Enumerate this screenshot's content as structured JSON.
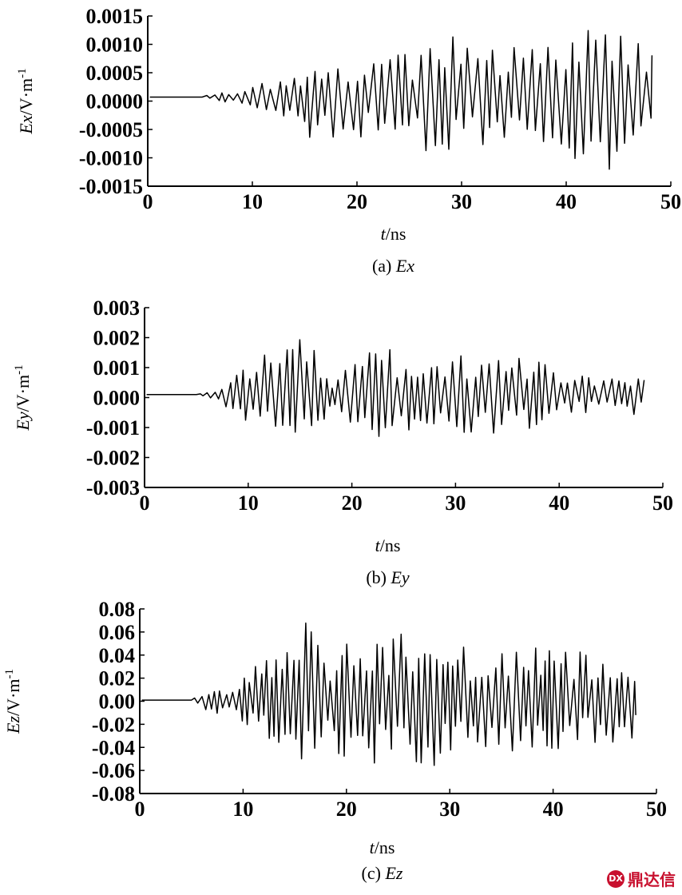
{
  "chart_data": [
    {
      "type": "line",
      "caption_prefix": "(a) ",
      "caption_var": "Ex",
      "ylabel_var": "Ex",
      "ylabel_unit": "/V·m",
      "ylabel_sup": "-1",
      "xlabel_var": "t",
      "xlabel_unit": "/ns",
      "xlim": [
        0,
        50
      ],
      "ylim": [
        -0.0015,
        0.0015
      ],
      "xticks": [
        "0",
        "10",
        "20",
        "30",
        "40",
        "50"
      ],
      "yticks": [
        "0.0015",
        "0.0010",
        "0.0005",
        "0.0000",
        "-0.0005",
        "-0.0010",
        "-0.0015"
      ],
      "y_offset": 7e-05,
      "signal_start": 5.2,
      "signal_end": 48.2,
      "envelope": [
        [
          5.2,
          3e-05
        ],
        [
          8,
          0.0001
        ],
        [
          12,
          0.0003
        ],
        [
          14.8,
          0.0004
        ],
        [
          15.2,
          0.0008
        ],
        [
          20,
          0.0007
        ],
        [
          25,
          0.0008
        ],
        [
          28,
          0.0012
        ],
        [
          30,
          0.001
        ],
        [
          35,
          0.0009
        ],
        [
          40,
          0.0011
        ],
        [
          44.5,
          0.0013
        ],
        [
          48,
          0.0009
        ]
      ],
      "period": 0.75
    },
    {
      "type": "line",
      "caption_prefix": "(b) ",
      "caption_var": "Ey",
      "ylabel_var": "Ey",
      "ylabel_unit": "/V·m",
      "ylabel_sup": "-1",
      "xlabel_var": "t",
      "xlabel_unit": "/ns",
      "xlim": [
        0,
        50
      ],
      "ylim": [
        -0.003,
        0.003
      ],
      "xticks": [
        "0",
        "10",
        "20",
        "30",
        "40",
        "50"
      ],
      "yticks": [
        "0.003",
        "0.002",
        "0.001",
        "0.000",
        "-0.001",
        "-0.002",
        "-0.003"
      ],
      "y_offset": 0.0001,
      "signal_start": 5.0,
      "signal_end": 48.2,
      "envelope": [
        [
          5,
          2e-05
        ],
        [
          7,
          0.0002
        ],
        [
          9,
          0.0008
        ],
        [
          12,
          0.0015
        ],
        [
          14.8,
          0.0026
        ],
        [
          16.5,
          0.0015
        ],
        [
          18,
          0.0003
        ],
        [
          20,
          0.0012
        ],
        [
          23,
          0.0016
        ],
        [
          26,
          0.0013
        ],
        [
          30,
          0.0013
        ],
        [
          35,
          0.0013
        ],
        [
          38,
          0.0012
        ],
        [
          40,
          0.0008
        ],
        [
          44,
          0.0005
        ],
        [
          48,
          0.0007
        ]
      ],
      "period": 0.7
    },
    {
      "type": "line",
      "caption_prefix": "(c) ",
      "caption_var": "Ez",
      "ylabel_var": "Ez",
      "ylabel_unit": "/V·m",
      "ylabel_sup": "-1",
      "xlabel_var": "t",
      "xlabel_unit": "/ns",
      "xlim": [
        0,
        50
      ],
      "ylim": [
        -0.08,
        0.08
      ],
      "xticks": [
        "0",
        "10",
        "20",
        "30",
        "40",
        "50"
      ],
      "yticks": [
        "0.08",
        "0.06",
        "0.04",
        "0.02",
        "0.00",
        "-0.02",
        "-0.04",
        "-0.06",
        "-0.08"
      ],
      "y_offset": 0.001,
      "signal_start": 5.0,
      "signal_end": 48.0,
      "envelope": [
        [
          5,
          0.0005
        ],
        [
          7,
          0.012
        ],
        [
          9,
          0.01
        ],
        [
          11,
          0.03
        ],
        [
          14,
          0.045
        ],
        [
          15.8,
          0.07
        ],
        [
          18,
          0.045
        ],
        [
          21,
          0.055
        ],
        [
          25,
          0.06
        ],
        [
          28,
          0.06
        ],
        [
          30,
          0.05
        ],
        [
          33,
          0.045
        ],
        [
          36,
          0.055
        ],
        [
          40,
          0.045
        ],
        [
          44,
          0.04
        ],
        [
          48,
          0.035
        ]
      ],
      "period": 0.6
    }
  ],
  "watermark": {
    "logo": "DX",
    "text": "鼎达信"
  }
}
